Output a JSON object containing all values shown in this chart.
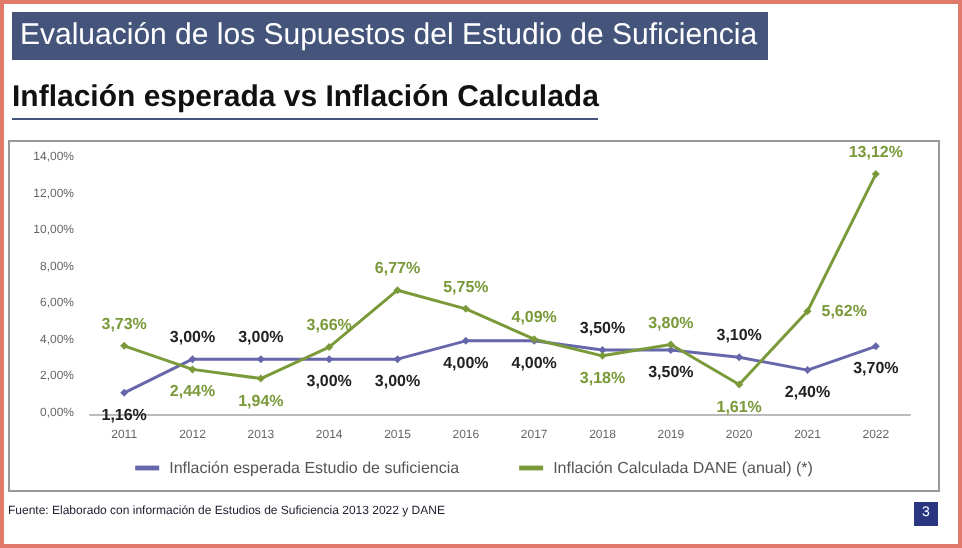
{
  "chart_data": {
    "type": "line",
    "title": "Evaluación de los Supuestos del Estudio de Suficiencia",
    "subtitle": "Inflación esperada vs Inflación Calculada",
    "categories": [
      "2011",
      "2012",
      "2013",
      "2014",
      "2015",
      "2016",
      "2017",
      "2018",
      "2019",
      "2020",
      "2021",
      "2022"
    ],
    "series": [
      {
        "name": "Inflación esperada Estudio de suficiencia",
        "color": "#6666aa",
        "values": [
          1.16,
          3,
          3,
          3,
          3,
          4,
          4,
          3.5,
          3.5,
          3.1,
          2.4,
          3.7
        ],
        "value_labels": [
          "1,16%",
          "3,00%",
          "3,00%",
          "3,00%",
          "3,00%",
          "4,00%",
          "4,00%",
          "3,50%",
          "3,50%",
          "3,10%",
          "2,40%",
          "3,70%"
        ]
      },
      {
        "name": "Inflación Calculada DANE (anual) (*)",
        "color": "#7a9a3a",
        "values": [
          3.73,
          2.44,
          1.94,
          3.66,
          6.77,
          5.75,
          4.09,
          3.18,
          3.8,
          1.61,
          5.62,
          13.12
        ],
        "value_labels": [
          "3,73%",
          "2,44%",
          "1,94%",
          "3,66%",
          "6,77%",
          "5,75%",
          "4,09%",
          "3,18%",
          "3,80%",
          "1,61%",
          "5,62%",
          "13,12%"
        ]
      }
    ],
    "ylim": [
      0,
      14
    ],
    "yticks": [
      {
        "value": 0,
        "label": "0,00%"
      },
      {
        "value": 2,
        "label": "2,00%"
      },
      {
        "value": 4,
        "label": "4,00%"
      },
      {
        "value": 6,
        "label": "6,00%"
      },
      {
        "value": 8,
        "label": "8,00%"
      },
      {
        "value": 10,
        "label": "10,00%"
      },
      {
        "value": 12,
        "label": "12,00%"
      },
      {
        "value": 14,
        "label": "14,00%"
      }
    ],
    "grid": false,
    "legend": "bottom",
    "marker": "diamond",
    "line_style": "solid",
    "annotations": [
      "Fuente: Elaborado con información de Estudios de Suficiencia 2013 2022 y DANE",
      "3"
    ]
  }
}
